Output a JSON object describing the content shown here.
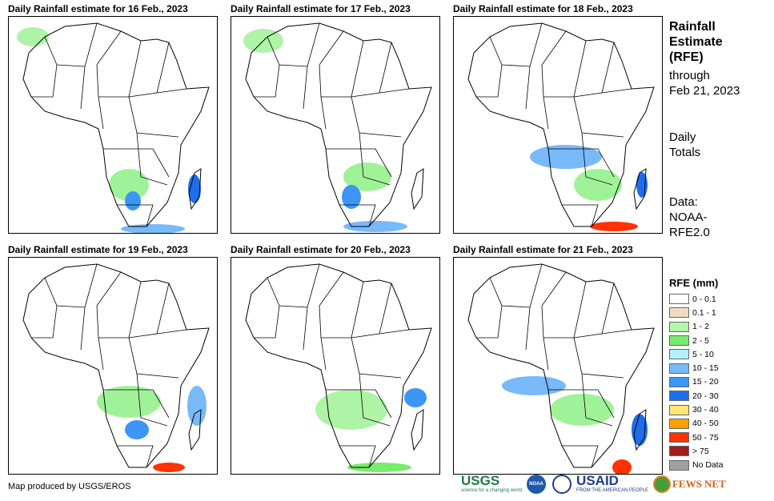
{
  "panels": [
    {
      "title": "Daily Rainfall estimate for 16 Feb., 2023"
    },
    {
      "title": "Daily Rainfall estimate for 17 Feb., 2023"
    },
    {
      "title": "Daily Rainfall estimate for 18 Feb., 2023"
    },
    {
      "title": "Daily Rainfall estimate for 19 Feb., 2023"
    },
    {
      "title": "Daily Rainfall estimate for 20 Feb., 2023"
    },
    {
      "title": "Daily Rainfall estimate for 21 Feb., 2023"
    }
  ],
  "side": {
    "line1": "Rainfall",
    "line2": "Estimate",
    "line3": "(RFE)",
    "through": "through",
    "date": "Feb 21, 2023",
    "daily1": "Daily",
    "daily2": "Totals",
    "data1": "Data:",
    "data2": "NOAA-",
    "data3": "RFE2.0"
  },
  "legend": {
    "title": "RFE (mm)",
    "items": [
      {
        "label": "0 - 0.1",
        "color": "#ffffff"
      },
      {
        "label": "0.1 - 1",
        "color": "#f0dcc0"
      },
      {
        "label": "1 - 2",
        "color": "#b4f5a8"
      },
      {
        "label": "2 - 5",
        "color": "#78ec6c"
      },
      {
        "label": "5 - 10",
        "color": "#b4f0fa"
      },
      {
        "label": "10 - 15",
        "color": "#78b9fa"
      },
      {
        "label": "15 - 20",
        "color": "#3c96f5"
      },
      {
        "label": "20 - 30",
        "color": "#1e6eeb"
      },
      {
        "label": "30 - 40",
        "color": "#ffe678"
      },
      {
        "label": "40 - 50",
        "color": "#ffa000"
      },
      {
        "label": "50 - 75",
        "color": "#ff3200"
      },
      {
        "label": "> 75",
        "color": "#a01e1e"
      },
      {
        "label": "No Data",
        "color": "#a0a0a0"
      }
    ]
  },
  "credit": "Map produced by USGS/EROS",
  "logos": {
    "usgs": "USGS",
    "usgs_tag": "science for a changing world",
    "noaa": "NOAA",
    "usaid": "USAID",
    "usaid_tag": "FROM THE AMERICAN PEOPLE",
    "fews": "FEWS NET"
  }
}
